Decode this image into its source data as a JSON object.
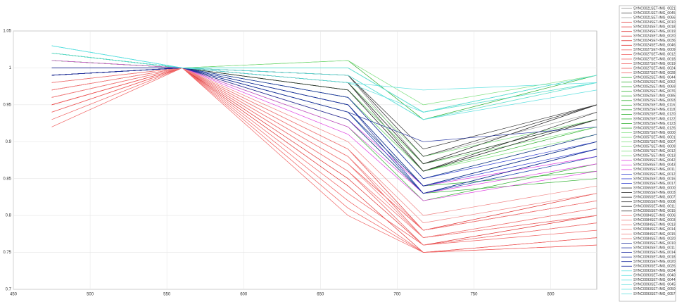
{
  "chart_data": {
    "type": "line",
    "grid": true,
    "legend": "right",
    "x": [
      475,
      560,
      668,
      717,
      830
    ],
    "xlim": [
      450,
      830
    ],
    "xticks": [
      450,
      500,
      550,
      600,
      650,
      700,
      750,
      800
    ],
    "ylim": [
      0.7,
      1.05
    ],
    "yticks": [
      0.7,
      0.75,
      0.8,
      0.85,
      0.9,
      0.95,
      1,
      1.05
    ],
    "series": [
      {
        "name": "SYNC0021SET-IMG_0021",
        "color": "#909090",
        "values": [
          0.99,
          1,
          0.99,
          0.87,
          0.95
        ]
      },
      {
        "name": "SYNC0021SET-IMG_0045",
        "color": "#404040",
        "values": [
          1.02,
          1,
          0.98,
          0.86,
          0.93
        ]
      },
      {
        "name": "SYNC0021SET-IMG_0066",
        "color": "#a0a0a0",
        "values": [
          1.0,
          1,
          0.99,
          0.88,
          0.94
        ]
      },
      {
        "name": "SYNC0024SET-IMG_0010",
        "color": "#e03030",
        "values": [
          0.97,
          1,
          0.88,
          0.77,
          0.8
        ]
      },
      {
        "name": "SYNC0024SET-IMG_0018",
        "color": "#e03030",
        "values": [
          0.95,
          1,
          0.86,
          0.76,
          0.79
        ]
      },
      {
        "name": "SYNC0024SET-IMG_0019",
        "color": "#e03030",
        "values": [
          0.96,
          1,
          0.87,
          0.78,
          0.82
        ]
      },
      {
        "name": "SYNC0024SET-IMG_0020",
        "color": "#e03030",
        "values": [
          0.94,
          1,
          0.84,
          0.75,
          0.77
        ]
      },
      {
        "name": "SYNC0024SET-IMG_0036",
        "color": "#e03030",
        "values": [
          0.98,
          1,
          0.89,
          0.78,
          0.83
        ]
      },
      {
        "name": "SYNC0024SET-IMG_0046",
        "color": "#e03030",
        "values": [
          0.95,
          1,
          0.85,
          0.76,
          0.8
        ]
      },
      {
        "name": "SYNC0027SET-IMG_0009",
        "color": "#f06060",
        "values": [
          0.93,
          1,
          0.82,
          0.75,
          0.76
        ]
      },
      {
        "name": "SYNC0027SET-IMG_0012",
        "color": "#f06060",
        "values": [
          0.96,
          1,
          0.86,
          0.77,
          0.81
        ]
      },
      {
        "name": "SYNC0027SET-IMG_0018",
        "color": "#f06060",
        "values": [
          0.97,
          1,
          0.87,
          0.78,
          0.82
        ]
      },
      {
        "name": "SYNC0027SET-IMG_0019",
        "color": "#f06060",
        "values": [
          0.92,
          1,
          0.8,
          0.75,
          0.76
        ]
      },
      {
        "name": "SYNC0027SET-IMG_0024",
        "color": "#f06060",
        "values": [
          0.95,
          1,
          0.83,
          0.76,
          0.78
        ]
      },
      {
        "name": "SYNC0027SET-IMG_0028",
        "color": "#f06060",
        "values": [
          0.94,
          1,
          0.81,
          0.75,
          0.77
        ]
      },
      {
        "name": "SYNC0052SET-IMG_0044",
        "color": "#30b030",
        "values": [
          1.01,
          1,
          0.95,
          0.84,
          0.9
        ]
      },
      {
        "name": "SYNC0052SET-IMG_0052",
        "color": "#30b030",
        "values": [
          1.02,
          1,
          0.94,
          0.83,
          0.89
        ]
      },
      {
        "name": "SYNC0052SET-IMG_0069",
        "color": "#30b030",
        "values": [
          1.0,
          1,
          0.96,
          0.85,
          0.91
        ]
      },
      {
        "name": "SYNC0052SET-IMG_0076",
        "color": "#30b030",
        "values": [
          1.01,
          1,
          0.93,
          0.83,
          0.88
        ]
      },
      {
        "name": "SYNC0052SET-IMG_0085",
        "color": "#30b030",
        "values": [
          1.02,
          1,
          0.92,
          0.82,
          0.87
        ]
      },
      {
        "name": "SYNC0052SET-IMG_0093",
        "color": "#30b030",
        "values": [
          1.0,
          1,
          0.95,
          0.84,
          0.9
        ]
      },
      {
        "name": "SYNC0052SET-IMG_0116",
        "color": "#30b030",
        "values": [
          1.01,
          1,
          1.01,
          0.93,
          0.99
        ]
      },
      {
        "name": "SYNC0052SET-IMG_0118",
        "color": "#30b030",
        "values": [
          1.02,
          1,
          1.0,
          0.94,
          0.99
        ]
      },
      {
        "name": "SYNC0052SET-IMG_0120",
        "color": "#30b030",
        "values": [
          1.01,
          1,
          0.94,
          0.84,
          0.86
        ]
      },
      {
        "name": "SYNC0052SET-IMG_0122",
        "color": "#30b030",
        "values": [
          1.0,
          1,
          0.93,
          0.83,
          0.85
        ]
      },
      {
        "name": "SYNC0052SET-IMG_0123",
        "color": "#30b030",
        "values": [
          1.02,
          1,
          0.96,
          0.86,
          0.92
        ]
      },
      {
        "name": "SYNC0052SET-IMG_0126",
        "color": "#30b030",
        "values": [
          1.01,
          1,
          0.97,
          0.87,
          0.93
        ]
      },
      {
        "name": "SYNC0057SET-IMG_0000",
        "color": "#80e080",
        "values": [
          1.0,
          1,
          1.0,
          0.94,
          0.98
        ]
      },
      {
        "name": "SYNC0057SET-IMG_0001",
        "color": "#80e080",
        "values": [
          1.01,
          1,
          1.01,
          0.95,
          0.99
        ]
      },
      {
        "name": "SYNC0057SET-IMG_0007",
        "color": "#80e080",
        "values": [
          0.99,
          1,
          0.99,
          0.93,
          0.98
        ]
      },
      {
        "name": "SYNC0057SET-IMG_0009",
        "color": "#80e080",
        "values": [
          1.0,
          1,
          0.98,
          0.88,
          0.93
        ]
      },
      {
        "name": "SYNC0057SET-IMG_0012",
        "color": "#80e080",
        "values": [
          1.01,
          1,
          0.97,
          0.87,
          0.92
        ]
      },
      {
        "name": "SYNC0057SET-IMG_0013",
        "color": "#80e080",
        "values": [
          1.0,
          1,
          0.96,
          0.86,
          0.91
        ]
      },
      {
        "name": "SYNC0059SET-IMG_0042",
        "color": "#e040e0",
        "values": [
          1.0,
          1,
          0.92,
          0.83,
          0.87
        ]
      },
      {
        "name": "SYNC0059SET-IMG_0043",
        "color": "#e040e0",
        "values": [
          1.01,
          1,
          0.93,
          0.84,
          0.88
        ]
      },
      {
        "name": "SYNC0059SET-IMG_0011",
        "color": "#e040e0",
        "values": [
          1.0,
          1,
          0.91,
          0.82,
          0.86
        ]
      },
      {
        "name": "SYNC0063SET-IMG_0012",
        "color": "#3040d0",
        "values": [
          0.99,
          1,
          0.95,
          0.84,
          0.89
        ]
      },
      {
        "name": "SYNC0063SET-IMG_0016",
        "color": "#3040d0",
        "values": [
          1.0,
          1,
          0.96,
          0.85,
          0.9
        ]
      },
      {
        "name": "SYNC0063SET-IMG_0017",
        "color": "#3040d0",
        "values": [
          0.99,
          1,
          0.94,
          0.83,
          0.88
        ]
      },
      {
        "name": "SYNC0065SET-IMG_0000",
        "color": "#303030",
        "values": [
          0.99,
          1,
          0.98,
          0.87,
          0.95
        ]
      },
      {
        "name": "SYNC0065SET-IMG_0003",
        "color": "#303030",
        "values": [
          1.0,
          1,
          0.99,
          0.88,
          0.95
        ]
      },
      {
        "name": "SYNC0065SET-IMG_0007",
        "color": "#303030",
        "values": [
          0.99,
          1,
          0.97,
          0.86,
          0.94
        ]
      },
      {
        "name": "SYNC0065SET-IMG_0008",
        "color": "#303030",
        "values": [
          0.99,
          1,
          0.98,
          0.87,
          0.93
        ]
      },
      {
        "name": "SYNC0065SET-IMG_0011",
        "color": "#303030",
        "values": [
          1.0,
          1,
          0.99,
          0.89,
          0.95
        ]
      },
      {
        "name": "SYNC0065SET-IMG_0015",
        "color": "#303030",
        "values": [
          0.99,
          1,
          0.97,
          0.86,
          0.93
        ]
      },
      {
        "name": "SYNC0084SET-IMG_0006",
        "color": "#f08080",
        "values": [
          0.97,
          1,
          0.89,
          0.79,
          0.83
        ]
      },
      {
        "name": "SYNC0084SET-IMG_0003",
        "color": "#f08080",
        "values": [
          0.96,
          1,
          0.88,
          0.78,
          0.82
        ]
      },
      {
        "name": "SYNC0084SET-IMG_0013",
        "color": "#f08080",
        "values": [
          0.97,
          1,
          0.87,
          0.77,
          0.8
        ]
      },
      {
        "name": "SYNC0084SET-IMG_0014",
        "color": "#f08080",
        "values": [
          0.98,
          1,
          0.9,
          0.8,
          0.84
        ]
      },
      {
        "name": "SYNC0084SET-IMG_0015",
        "color": "#f08080",
        "values": [
          0.96,
          1,
          0.86,
          0.76,
          0.79
        ]
      },
      {
        "name": "SYNC0084SET-IMG_0020",
        "color": "#f08080",
        "values": [
          0.97,
          1,
          0.88,
          0.77,
          0.81
        ]
      },
      {
        "name": "SYNC0093SET-IMG_0010",
        "color": "#2030a0",
        "values": [
          0.99,
          1,
          0.95,
          0.84,
          0.9
        ]
      },
      {
        "name": "SYNC0093SET-IMG_0011",
        "color": "#2030a0",
        "values": [
          0.99,
          1,
          0.94,
          0.9,
          0.92
        ]
      },
      {
        "name": "SYNC0093SET-IMG_0014",
        "color": "#2030a0",
        "values": [
          1.0,
          1,
          0.93,
          0.83,
          0.89
        ]
      },
      {
        "name": "SYNC0093SET-IMG_0018",
        "color": "#2030a0",
        "values": [
          0.99,
          1,
          0.96,
          0.85,
          0.91
        ]
      },
      {
        "name": "SYNC0093SET-IMG_0020",
        "color": "#2030a0",
        "values": [
          1.0,
          1,
          0.95,
          0.83,
          0.89
        ]
      },
      {
        "name": "SYNC0093SET-IMG_0026",
        "color": "#2030a0",
        "values": [
          0.99,
          1,
          0.94,
          0.84,
          0.9
        ]
      },
      {
        "name": "SYNC0093SET-IMG_0034",
        "color": "#60e0e0",
        "values": [
          1.03,
          1,
          1.0,
          0.94,
          0.99
        ]
      },
      {
        "name": "SYNC0093SET-IMG_0040",
        "color": "#60e0e0",
        "values": [
          1.03,
          1,
          0.99,
          0.93,
          0.98
        ]
      },
      {
        "name": "SYNC0093SET-IMG_0044",
        "color": "#60e0e0",
        "values": [
          1.02,
          1,
          0.98,
          0.97,
          0.98
        ]
      },
      {
        "name": "SYNC0093SET-IMG_0045",
        "color": "#60e0e0",
        "values": [
          1.03,
          1,
          1.0,
          0.94,
          0.98
        ]
      },
      {
        "name": "SYNC0093SET-IMG_0050",
        "color": "#60e0e0",
        "values": [
          1.02,
          1,
          0.99,
          0.93,
          0.97
        ]
      },
      {
        "name": "SYNC0093SET-IMG_0057",
        "color": "#60e0e0",
        "values": [
          1.03,
          1,
          0.98,
          0.94,
          0.99
        ]
      }
    ]
  }
}
